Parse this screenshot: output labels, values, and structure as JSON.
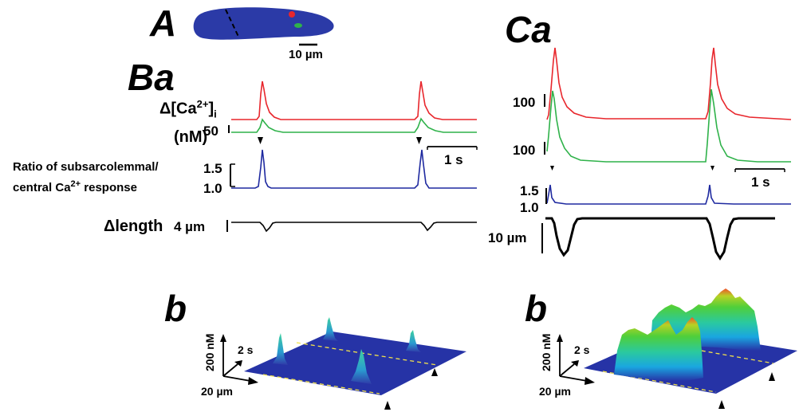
{
  "panels": {
    "A": "A",
    "Ba": "Ba",
    "Ca": "Ca",
    "b_left": "b",
    "b_right": "b"
  },
  "cell_image": {
    "scale_bar_label": "10 µm",
    "cell_color": "#2b3aa7",
    "roi_subsarcolemmal_color": "#e8262c",
    "roi_central_color": "#2fb24a"
  },
  "Ba": {
    "ca_label_delta": "Δ",
    "ca_label_main": "[Ca",
    "ca_label_sup": "2+",
    "ca_label_close": "]",
    "ca_label_sub": "i",
    "unit_label": "(nM)",
    "ca_scale": "50",
    "ratio_label_line1": "Ratio of subsarcolemmal/",
    "ratio_label_line2_pre": "central Ca",
    "ratio_label_sup": "2+",
    "ratio_label_line2_post": " response",
    "ratio_tick_high": "1.5",
    "ratio_tick_low": "1.0",
    "length_label": "Δlength",
    "length_scale": "4 µm",
    "time_scale": "1 s"
  },
  "Ca": {
    "ca_scale_top": "100",
    "ca_scale_bottom": "100",
    "ratio_tick_high": "1.5",
    "ratio_tick_low": "1.0",
    "length_scale": "10 µm",
    "time_scale": "1 s"
  },
  "surface_plots": {
    "left": {
      "y_axis": "200 nM",
      "time_axis": "2 s",
      "space_axis": "20 µm"
    },
    "right": {
      "y_axis": "200 nM",
      "time_axis": "2 s",
      "space_axis": "20 µm"
    }
  },
  "trace_colors": {
    "subsarcolemmal": "#e8262c",
    "central": "#2fb24a",
    "ratio": "#1f2aa0",
    "length": "#000000"
  }
}
